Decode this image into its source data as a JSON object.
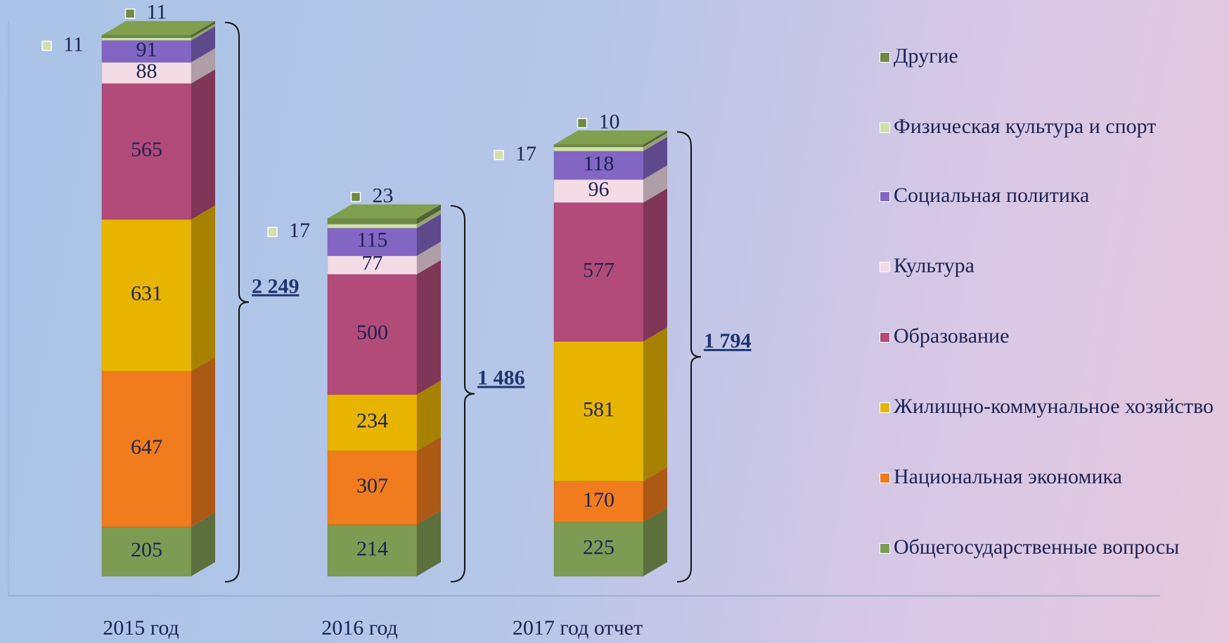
{
  "chart_data": {
    "type": "bar3d_stacked",
    "categories": [
      "2015 год",
      "2016 год",
      "2017 год отчет"
    ],
    "series": [
      {
        "name": "Общегосударственные вопросы",
        "color": "#7e9b53",
        "values": [
          205,
          214,
          225
        ]
      },
      {
        "name": "Национальная экономика",
        "color": "#f07c1e",
        "values": [
          647,
          307,
          170
        ]
      },
      {
        "name": "Жилищно-коммунальное хозяйство",
        "color": "#e7b500",
        "values": [
          631,
          234,
          581
        ]
      },
      {
        "name": "Образование",
        "color": "#b24b79",
        "values": [
          565,
          500,
          577
        ]
      },
      {
        "name": "Культура",
        "color": "#f3dce6",
        "values": [
          88,
          77,
          96
        ]
      },
      {
        "name": "Социальная политика",
        "color": "#8366c4",
        "values": [
          91,
          115,
          118
        ]
      },
      {
        "name": "Физическая культура и спорт",
        "color": "#cfe0a9",
        "values": [
          11,
          17,
          17
        ]
      },
      {
        "name": "Другие",
        "color": "#6f8a45",
        "values": [
          11,
          23,
          10
        ]
      }
    ],
    "totals": {
      "values": [
        2249,
        1486,
        1794
      ],
      "value_labels": [
        "2 249",
        "1 486",
        "1 794"
      ]
    },
    "legend": "right"
  }
}
